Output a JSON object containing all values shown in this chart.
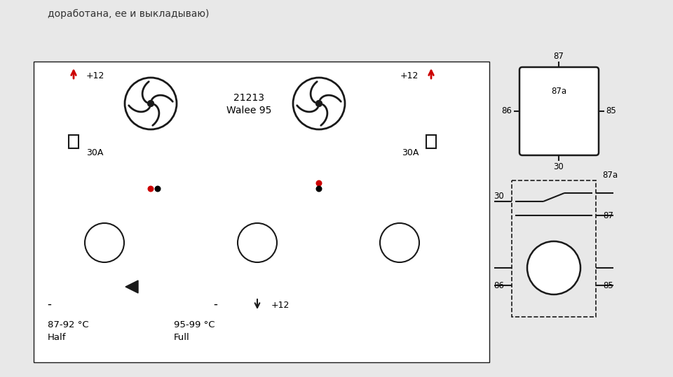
{
  "bg_color": "#e8e8e8",
  "diagram_bg": "#ffffff",
  "line_color": "#1a1a1a",
  "red_color": "#cc0000",
  "title_text": "доработана, ее и выкладываю)",
  "label_21213": "21213",
  "label_walee": "Walee 95",
  "label_30A_left": "30A",
  "label_30A_right": "30A",
  "label_plus12_left": "+12",
  "label_plus12_right": "+12",
  "label_plus12_bottom": "+12",
  "label_temp1": "87-92 °C",
  "label_half": "Half",
  "label_temp2": "95-99 °C",
  "label_full": "Full",
  "font_size_main": 9,
  "font_size_label": 8.5
}
